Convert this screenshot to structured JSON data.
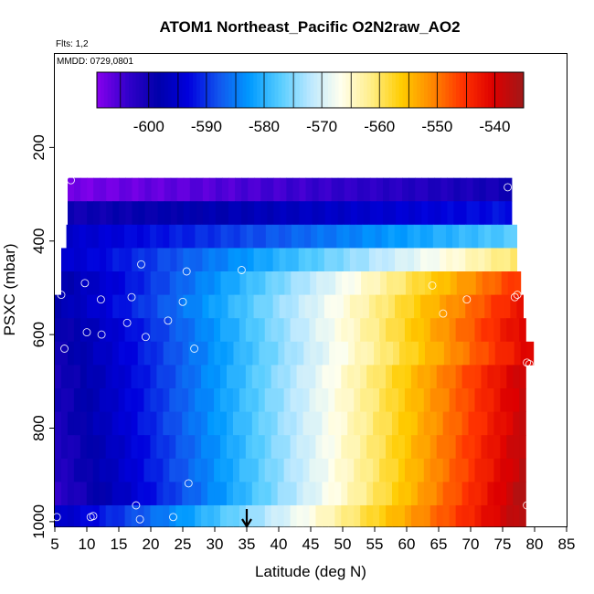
{
  "chart_data": {
    "type": "heatmap",
    "title": "ATOM1 Northeast_Pacific O2N2raw_AO2",
    "flights_text": "Flts: 1,2",
    "date_text": "MMDD: 0729,0801",
    "xlabel": "Latitude (deg N)",
    "ylabel": "PSXC (mbar)",
    "xlim": [
      5,
      85
    ],
    "ylim": [
      1010,
      0
    ],
    "x_ticks": [
      5,
      10,
      15,
      20,
      25,
      30,
      35,
      40,
      45,
      50,
      55,
      60,
      65,
      70,
      75,
      80,
      85
    ],
    "y_ticks": [
      200,
      400,
      600,
      800,
      1000
    ],
    "colorbar": {
      "range": [
        -609,
        -535
      ],
      "ticks": [
        -600,
        -590,
        -580,
        -570,
        -560,
        -550,
        -540
      ],
      "colors": [
        "#8800ee",
        "#3300cc",
        "#0000aa",
        "#0000dd",
        "#1155ee",
        "#0099ff",
        "#55ccff",
        "#bbe8ff",
        "#ffffee",
        "#ffee88",
        "#ffcc00",
        "#ff8800",
        "#ff3300",
        "#dd0000",
        "#a01818"
      ]
    },
    "layers": [
      {
        "p_top": 265,
        "p_bot": 315,
        "lat_start": 7.0,
        "lat_end": 76.4,
        "v_start": -608,
        "v_end": -600
      },
      {
        "p_top": 315,
        "p_bot": 365,
        "lat_start": 7.0,
        "lat_end": 76.4,
        "v_start": -600,
        "v_end": -592
      },
      {
        "p_top": 365,
        "p_bot": 415,
        "lat_start": 6.8,
        "lat_end": 77.2,
        "v_start": -595,
        "v_end": -577
      },
      {
        "p_top": 415,
        "p_bot": 465,
        "lat_start": 6.0,
        "lat_end": 77.2,
        "v_start": -595,
        "v_end": -560
      },
      {
        "p_top": 465,
        "p_bot": 515,
        "lat_start": 6.0,
        "lat_end": 77.8,
        "v_start": -598,
        "v_end": -545
      },
      {
        "p_top": 515,
        "p_bot": 565,
        "lat_start": 5.0,
        "lat_end": 78.2,
        "v_start": -598,
        "v_end": -542
      },
      {
        "p_top": 565,
        "p_bot": 615,
        "lat_start": 5.0,
        "lat_end": 78.6,
        "v_start": -600,
        "v_end": -540
      },
      {
        "p_top": 615,
        "p_bot": 665,
        "lat_start": 5.0,
        "lat_end": 79.8,
        "v_start": -600,
        "v_end": -540
      },
      {
        "p_top": 665,
        "p_bot": 715,
        "lat_start": 5.0,
        "lat_end": 78.6,
        "v_start": -601,
        "v_end": -538
      },
      {
        "p_top": 715,
        "p_bot": 765,
        "lat_start": 5.0,
        "lat_end": 78.6,
        "v_start": -601,
        "v_end": -538
      },
      {
        "p_top": 765,
        "p_bot": 815,
        "lat_start": 5.0,
        "lat_end": 78.6,
        "v_start": -601,
        "v_end": -538
      },
      {
        "p_top": 815,
        "p_bot": 865,
        "lat_start": 5.0,
        "lat_end": 78.6,
        "v_start": -602,
        "v_end": -537
      },
      {
        "p_top": 865,
        "p_bot": 915,
        "lat_start": 5.0,
        "lat_end": 78.6,
        "v_start": -602,
        "v_end": -537
      },
      {
        "p_top": 915,
        "p_bot": 965,
        "lat_start": 5.0,
        "lat_end": 78.6,
        "v_start": -603,
        "v_end": -536
      },
      {
        "p_top": 965,
        "p_bot": 1010,
        "lat_start": 5.0,
        "lat_end": 78.6,
        "v_start": -596,
        "v_end": -536
      }
    ],
    "samples": [
      {
        "lat": 7.5,
        "p": 270
      },
      {
        "lat": 75.8,
        "p": 285
      },
      {
        "lat": 18.5,
        "p": 450
      },
      {
        "lat": 25.6,
        "p": 465
      },
      {
        "lat": 34.2,
        "p": 462
      },
      {
        "lat": 9.7,
        "p": 490
      },
      {
        "lat": 64.0,
        "p": 495
      },
      {
        "lat": 6.0,
        "p": 515
      },
      {
        "lat": 17.0,
        "p": 520
      },
      {
        "lat": 12.2,
        "p": 525
      },
      {
        "lat": 25.0,
        "p": 530
      },
      {
        "lat": 69.4,
        "p": 525
      },
      {
        "lat": 77.3,
        "p": 515
      },
      {
        "lat": 76.9,
        "p": 520
      },
      {
        "lat": 65.7,
        "p": 555
      },
      {
        "lat": 16.3,
        "p": 575
      },
      {
        "lat": 22.7,
        "p": 570
      },
      {
        "lat": 10.0,
        "p": 595
      },
      {
        "lat": 12.3,
        "p": 600
      },
      {
        "lat": 19.2,
        "p": 605
      },
      {
        "lat": 6.5,
        "p": 630
      },
      {
        "lat": 26.8,
        "p": 630
      },
      {
        "lat": 78.8,
        "p": 660
      },
      {
        "lat": 79.2,
        "p": 663
      },
      {
        "lat": 25.9,
        "p": 918
      },
      {
        "lat": 17.7,
        "p": 965
      },
      {
        "lat": 78.8,
        "p": 965
      },
      {
        "lat": 5.3,
        "p": 990
      },
      {
        "lat": 10.6,
        "p": 990
      },
      {
        "lat": 11.0,
        "p": 988
      },
      {
        "lat": 18.3,
        "p": 995
      },
      {
        "lat": 23.5,
        "p": 990
      }
    ],
    "marker_lat": 35.0
  }
}
